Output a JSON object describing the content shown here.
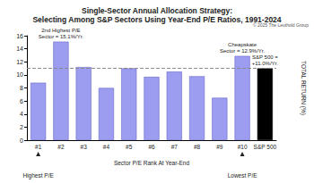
{
  "chart_data": {
    "type": "bar",
    "title": "Single-Sector Annual Allocation Strategy:",
    "subtitle": "Selecting Among S&P Sectors Using Year-End P/E Ratios, 1991-2024",
    "source": "© 2025 The Leuthold Group",
    "x_label": "Sector P/E Rank At Year-End",
    "y_label": "TOTAL RETURN (%)",
    "categories": [
      "#1",
      "#2",
      "#3",
      "#4",
      "#5",
      "#6",
      "#7",
      "#8",
      "#9",
      "#10",
      "S&P 500"
    ],
    "values": [
      8.8,
      15.1,
      11.2,
      8.0,
      11.0,
      9.7,
      10.5,
      9.8,
      6.5,
      12.9,
      11.0
    ],
    "colors": [
      "#9c9cf0",
      "#9c9cf0",
      "#9c9cf0",
      "#9c9cf0",
      "#9c9cf0",
      "#9c9cf0",
      "#9c9cf0",
      "#9c9cf0",
      "#9c9cf0",
      "#9c9cf0",
      "#000000"
    ],
    "reference_line": 11.0,
    "ylim": [
      0,
      16
    ],
    "yticks": [
      0,
      2,
      4,
      6,
      8,
      10,
      12,
      14,
      16
    ],
    "grid": false,
    "data_labels": false,
    "annotations": [
      {
        "text": "2nd Highest P/E\nSector = 15.1%/Yr.",
        "category": "#2"
      },
      {
        "text": "Cheapskate\nSector = 12.9%/Yr.",
        "category": "#10"
      },
      {
        "text": "S&P 500 =\n+11.0%/Yr.",
        "category": "S&P 500"
      }
    ],
    "x_annotations": [
      {
        "text": "Highest P/E",
        "category": "#1"
      },
      {
        "text": "Lowest P/E",
        "category": "#10"
      }
    ]
  }
}
